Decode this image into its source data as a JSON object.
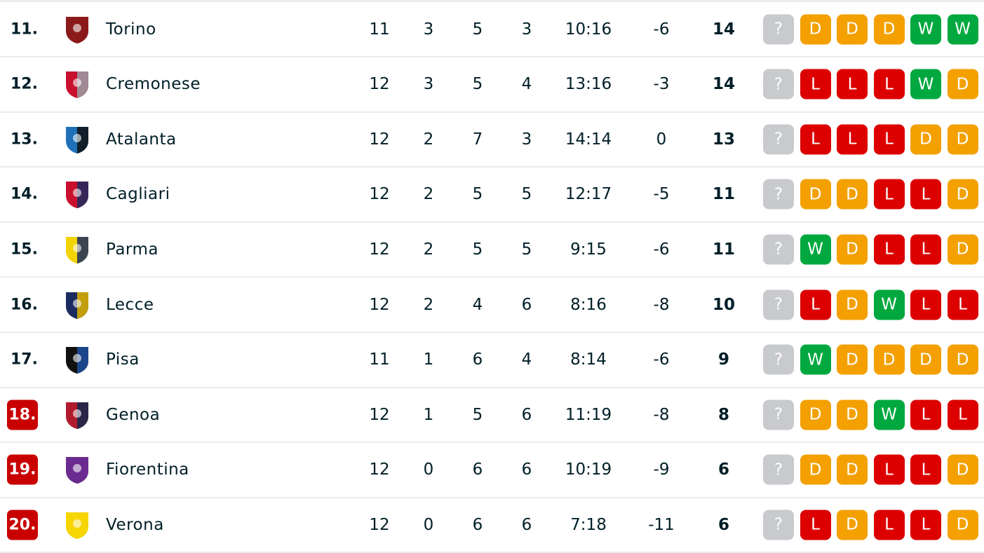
{
  "colors": {
    "win": "#00a83f",
    "draw": "#f3a000",
    "loss": "#dc0000",
    "unknown": "#c8cacd",
    "relegation": "#c80000"
  },
  "rows": [
    {
      "rank": "11.",
      "team": "Torino",
      "mp": "11",
      "w": "3",
      "d": "5",
      "l": "3",
      "goals": "10:16",
      "gd": "-6",
      "pts": "14",
      "form": [
        "?",
        "D",
        "D",
        "D",
        "W",
        "W"
      ],
      "rel": false,
      "c1": "#8b1a1a",
      "c2": "#8b1a1a"
    },
    {
      "rank": "12.",
      "team": "Cremonese",
      "mp": "12",
      "w": "3",
      "d": "5",
      "l": "4",
      "goals": "13:16",
      "gd": "-3",
      "pts": "14",
      "form": [
        "?",
        "L",
        "L",
        "L",
        "W",
        "D"
      ],
      "rel": false,
      "c1": "#c8102e",
      "c2": "#9aa0a6"
    },
    {
      "rank": "13.",
      "team": "Atalanta",
      "mp": "12",
      "w": "2",
      "d": "7",
      "l": "3",
      "goals": "14:14",
      "gd": "0",
      "pts": "13",
      "form": [
        "?",
        "L",
        "L",
        "L",
        "D",
        "D"
      ],
      "rel": false,
      "c1": "#1e71b8",
      "c2": "#111"
    },
    {
      "rank": "14.",
      "team": "Cagliari",
      "mp": "12",
      "w": "2",
      "d": "5",
      "l": "5",
      "goals": "12:17",
      "gd": "-5",
      "pts": "11",
      "form": [
        "?",
        "D",
        "D",
        "L",
        "L",
        "D"
      ],
      "rel": false,
      "c1": "#c8102e",
      "c2": "#1a2b5f"
    },
    {
      "rank": "15.",
      "team": "Parma",
      "mp": "12",
      "w": "2",
      "d": "5",
      "l": "5",
      "goals": "9:15",
      "gd": "-6",
      "pts": "11",
      "form": [
        "?",
        "W",
        "D",
        "L",
        "L",
        "D"
      ],
      "rel": false,
      "c1": "#f2d300",
      "c2": "#1a2b5f"
    },
    {
      "rank": "16.",
      "team": "Lecce",
      "mp": "12",
      "w": "2",
      "d": "4",
      "l": "6",
      "goals": "8:16",
      "gd": "-8",
      "pts": "10",
      "form": [
        "?",
        "L",
        "D",
        "W",
        "L",
        "L"
      ],
      "rel": false,
      "c1": "#1a2b5f",
      "c2": "#e2b400"
    },
    {
      "rank": "17.",
      "team": "Pisa",
      "mp": "11",
      "w": "1",
      "d": "6",
      "l": "4",
      "goals": "8:14",
      "gd": "-6",
      "pts": "9",
      "form": [
        "?",
        "W",
        "D",
        "D",
        "D",
        "D"
      ],
      "rel": false,
      "c1": "#111",
      "c2": "#1e4fa0"
    },
    {
      "rank": "18.",
      "team": "Genoa",
      "mp": "12",
      "w": "1",
      "d": "5",
      "l": "6",
      "goals": "11:19",
      "gd": "-8",
      "pts": "8",
      "form": [
        "?",
        "D",
        "D",
        "W",
        "L",
        "L"
      ],
      "rel": true,
      "c1": "#b01c2e",
      "c2": "#14284b"
    },
    {
      "rank": "19.",
      "team": "Fiorentina",
      "mp": "12",
      "w": "0",
      "d": "6",
      "l": "6",
      "goals": "10:19",
      "gd": "-9",
      "pts": "6",
      "form": [
        "?",
        "D",
        "D",
        "L",
        "L",
        "D"
      ],
      "rel": true,
      "c1": "#6a2c91",
      "c2": "#6a2c91"
    },
    {
      "rank": "20.",
      "team": "Verona",
      "mp": "12",
      "w": "0",
      "d": "6",
      "l": "6",
      "goals": "7:18",
      "gd": "-11",
      "pts": "6",
      "form": [
        "?",
        "L",
        "D",
        "L",
        "L",
        "D"
      ],
      "rel": true,
      "c1": "#f6d500",
      "c2": "#f6d500"
    }
  ]
}
